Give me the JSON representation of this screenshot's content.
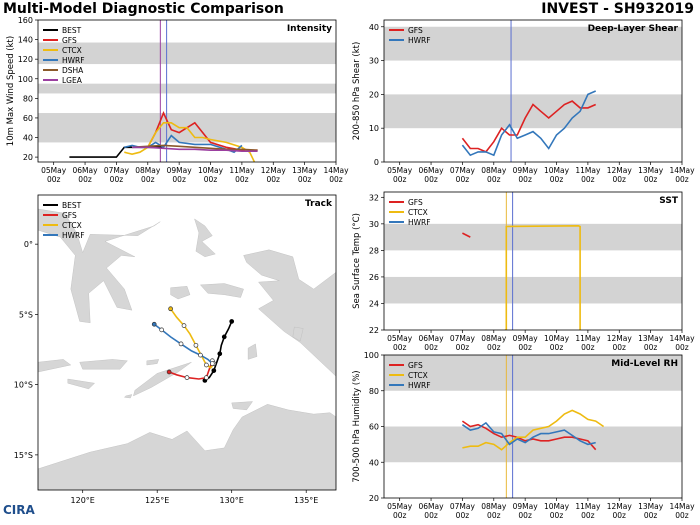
{
  "header": {
    "title": "Multi-Model Diagnostic Comparison",
    "storm": "INVEST - SH932019",
    "logo": "CIRA"
  },
  "colors": {
    "BEST": "#000000",
    "GFS": "#dd2222",
    "CTCX": "#eebb11",
    "HWRF": "#3377bb",
    "DSHA": "#8b5a2b",
    "LGEA": "#9b3fa0",
    "land": "#d6d6d6",
    "ocean": "#ffffff",
    "band": "#d3d3d3",
    "vline_gold": "#e8b83a",
    "vline_blue": "#5a6fd0",
    "vline_purple": "#9b3fa0"
  },
  "time_ticks": [
    "05May 00z",
    "06May 00z",
    "07May 00z",
    "08May 00z",
    "09May 00z",
    "10May 00z",
    "11May 00z",
    "12May 00z",
    "13May 00z",
    "14May 00z"
  ],
  "chart_data": [
    {
      "id": "intensity",
      "type": "line",
      "title": "Intensity",
      "ylabel": "10m Max Wind Speed (kt)",
      "xlim": [
        0,
        9.5
      ],
      "ylim": [
        15,
        160
      ],
      "yticks": [
        20,
        40,
        60,
        80,
        100,
        120,
        140,
        160
      ],
      "bands": [
        [
          35,
          65
        ],
        [
          85,
          95
        ],
        [
          115,
          137
        ]
      ],
      "vlines": [
        {
          "x": 3.9,
          "color": "vline_purple"
        },
        {
          "x": 4.1,
          "color": "vline_blue"
        }
      ],
      "legend": [
        "BEST",
        "GFS",
        "CTCX",
        "HWRF",
        "DSHA",
        "LGEA"
      ],
      "series": [
        {
          "name": "BEST",
          "color": "BEST",
          "x": [
            1,
            2.0,
            2.5,
            2.75,
            3.0,
            3.25,
            3.5,
            3.75,
            4.0
          ],
          "y": [
            20,
            20,
            20,
            30,
            30,
            30,
            30,
            30,
            30
          ]
        },
        {
          "name": "GFS",
          "color": "GFS",
          "x": [
            3.5,
            3.75,
            4.0,
            4.25,
            4.5,
            4.75,
            5.0,
            5.25,
            5.5,
            6.0,
            6.5,
            7.0
          ],
          "y": [
            30,
            45,
            65,
            48,
            45,
            50,
            55,
            45,
            35,
            30,
            27,
            27
          ]
        },
        {
          "name": "CTCX",
          "color": "CTCX",
          "x": [
            2.75,
            3.0,
            3.25,
            3.5,
            3.75,
            4.0,
            4.25,
            4.5,
            4.75,
            5.0,
            5.25,
            5.5,
            6.0,
            6.5,
            6.75,
            6.9
          ],
          "y": [
            25,
            23,
            25,
            30,
            45,
            55,
            55,
            50,
            50,
            40,
            40,
            38,
            35,
            30,
            25,
            15
          ]
        },
        {
          "name": "HWRF",
          "color": "HWRF",
          "x": [
            2.75,
            3.0,
            3.25,
            3.5,
            3.75,
            4.0,
            4.25,
            4.5,
            5.0,
            5.5,
            6.0,
            6.25,
            6.5
          ],
          "y": [
            30,
            32,
            30,
            30,
            35,
            30,
            42,
            35,
            33,
            33,
            28,
            25,
            32
          ]
        },
        {
          "name": "DSHA",
          "color": "DSHA",
          "x": [
            3.0,
            3.5,
            4.0,
            4.5,
            5.0,
            5.5,
            6.0,
            6.5,
            7.0
          ],
          "y": [
            30,
            31,
            32,
            31,
            30,
            29,
            28,
            28,
            27
          ]
        },
        {
          "name": "LGEA",
          "color": "LGEA",
          "x": [
            3.0,
            3.5,
            4.0,
            4.5,
            5.0,
            5.5,
            6.0,
            6.5,
            7.0
          ],
          "y": [
            30,
            30,
            29,
            28,
            28,
            27,
            27,
            26,
            26
          ]
        }
      ]
    },
    {
      "id": "shear",
      "type": "line",
      "title": "Deep-Layer Shear",
      "ylabel": "200-850 hPa Shear (kt)",
      "xlim": [
        0,
        9.5
      ],
      "ylim": [
        0,
        42
      ],
      "yticks": [
        0,
        10,
        20,
        30,
        40
      ],
      "bands": [
        [
          10,
          20
        ],
        [
          30,
          40
        ]
      ],
      "vlines": [
        {
          "x": 4.05,
          "color": "vline_blue"
        }
      ],
      "legend": [
        "GFS",
        "HWRF"
      ],
      "series": [
        {
          "name": "GFS",
          "color": "GFS",
          "x": [
            2.5,
            2.75,
            3.0,
            3.25,
            3.5,
            3.75,
            4.0,
            4.25,
            4.5,
            4.75,
            5.0,
            5.25,
            5.5,
            5.75,
            6.0,
            6.25,
            6.5,
            6.75
          ],
          "y": [
            7,
            4,
            4,
            3,
            6,
            10,
            8,
            8,
            13,
            17,
            15,
            13,
            15,
            17,
            18,
            16,
            16,
            17
          ]
        },
        {
          "name": "HWRF",
          "color": "HWRF",
          "x": [
            2.5,
            2.75,
            3.0,
            3.25,
            3.5,
            3.75,
            4.0,
            4.25,
            4.5,
            4.75,
            5.0,
            5.25,
            5.5,
            5.75,
            6.0,
            6.25,
            6.5,
            6.75
          ],
          "y": [
            5,
            2,
            3,
            3,
            2,
            8,
            11,
            7,
            8,
            9,
            7,
            4,
            8,
            10,
            13,
            15,
            20,
            21
          ]
        }
      ]
    },
    {
      "id": "track",
      "type": "scatter",
      "title": "Track",
      "xlim": [
        117,
        137
      ],
      "ylim": [
        -17.5,
        3.5
      ],
      "xticks": [
        120,
        125,
        130,
        135
      ],
      "xtick_labels": [
        "120°E",
        "125°E",
        "130°E",
        "135°E"
      ],
      "yticks": [
        0,
        -5,
        -10,
        -15
      ],
      "ytick_labels": [
        "0°",
        "5°S",
        "10°S",
        "15°S"
      ],
      "legend": [
        "BEST",
        "GFS",
        "CTCX",
        "HWRF"
      ],
      "series": [
        {
          "name": "BEST",
          "color": "BEST",
          "lon": [
            130.0,
            129.8,
            129.5,
            129.3,
            129.2,
            129.0,
            128.8,
            128.5,
            128.2
          ],
          "lat": [
            -5.5,
            -6.0,
            -6.6,
            -7.2,
            -7.8,
            -8.4,
            -9.0,
            -9.5,
            -9.7
          ]
        },
        {
          "name": "GFS",
          "color": "GFS",
          "lon": [
            128.7,
            128.5,
            128.3,
            127.8,
            127.0,
            126.3,
            125.8
          ],
          "lat": [
            -8.3,
            -8.9,
            -9.5,
            -9.6,
            -9.5,
            -9.3,
            -9.1
          ]
        },
        {
          "name": "CTCX",
          "color": "CTCX",
          "lon": [
            128.8,
            128.6,
            128.3,
            128.0,
            127.6,
            127.2,
            126.8,
            126.3,
            125.9
          ],
          "lat": [
            -8.5,
            -8.8,
            -8.6,
            -8.0,
            -7.2,
            -6.4,
            -5.8,
            -5.2,
            -4.6
          ]
        },
        {
          "name": "HWRF",
          "color": "HWRF",
          "lon": [
            128.7,
            128.4,
            127.9,
            127.3,
            126.6,
            125.9,
            125.3,
            124.8
          ],
          "lat": [
            -8.5,
            -8.2,
            -7.9,
            -7.6,
            -7.1,
            -6.6,
            -6.1,
            -5.7
          ]
        }
      ]
    },
    {
      "id": "sst",
      "type": "line",
      "title": "SST",
      "ylabel": "Sea Surface Temp (°C)",
      "xlim": [
        0,
        9.5
      ],
      "ylim": [
        22,
        32.4
      ],
      "yticks": [
        22,
        24,
        26,
        28,
        30,
        32
      ],
      "bands": [
        [
          24,
          26
        ],
        [
          28,
          30
        ]
      ],
      "vlines": [
        {
          "x": 3.9,
          "color": "vline_gold"
        },
        {
          "x": 4.1,
          "color": "vline_blue"
        }
      ],
      "legend": [
        "GFS",
        "CTCX",
        "HWRF"
      ],
      "series": [
        {
          "name": "GFS",
          "color": "GFS",
          "x": [
            2.5,
            2.75
          ],
          "y": [
            29.3,
            29.0
          ]
        },
        {
          "name": "CTCX",
          "color": "CTCX",
          "x": [
            3.85,
            3.9,
            3.9,
            6.2,
            6.25,
            6.25
          ],
          "y": [
            22,
            22,
            29.8,
            29.85,
            29.8,
            22
          ]
        }
      ]
    },
    {
      "id": "rh",
      "type": "line",
      "title": "Mid-Level RH",
      "ylabel": "700-500 hPa Humidity (%)",
      "xlim": [
        0,
        9.5
      ],
      "ylim": [
        20,
        100
      ],
      "yticks": [
        20,
        40,
        60,
        80,
        100
      ],
      "bands": [
        [
          40,
          60
        ],
        [
          80,
          100
        ]
      ],
      "vlines": [
        {
          "x": 3.9,
          "color": "vline_gold"
        },
        {
          "x": 4.1,
          "color": "vline_blue"
        }
      ],
      "legend": [
        "GFS",
        "CTCX",
        "HWRF"
      ],
      "series": [
        {
          "name": "GFS",
          "color": "GFS",
          "x": [
            2.5,
            2.75,
            3.0,
            3.25,
            3.5,
            3.75,
            4.0,
            4.25,
            4.5,
            4.75,
            5.0,
            5.25,
            5.5,
            5.75,
            6.0,
            6.25,
            6.5,
            6.75
          ],
          "y": [
            63,
            60,
            61,
            59,
            56,
            54,
            55,
            54,
            52,
            53,
            52,
            52,
            53,
            54,
            54,
            53,
            52,
            47
          ]
        },
        {
          "name": "CTCX",
          "color": "CTCX",
          "x": [
            2.5,
            2.75,
            3.0,
            3.25,
            3.5,
            3.75,
            4.0,
            4.25,
            4.5,
            4.75,
            5.0,
            5.25,
            5.5,
            5.75,
            6.0,
            6.25,
            6.5,
            6.75,
            7.0
          ],
          "y": [
            48,
            49,
            49,
            51,
            50,
            47,
            51,
            54,
            54,
            58,
            59,
            60,
            63,
            67,
            69,
            67,
            64,
            63,
            60
          ]
        },
        {
          "name": "HWRF",
          "color": "HWRF",
          "x": [
            2.5,
            2.75,
            3.0,
            3.25,
            3.5,
            3.75,
            4.0,
            4.25,
            4.5,
            4.75,
            5.0,
            5.25,
            5.5,
            5.75,
            6.0,
            6.25,
            6.5,
            6.75
          ],
          "y": [
            61,
            58,
            59,
            62,
            57,
            56,
            50,
            53,
            51,
            54,
            56,
            56,
            57,
            58,
            55,
            52,
            50,
            51
          ]
        }
      ]
    }
  ]
}
